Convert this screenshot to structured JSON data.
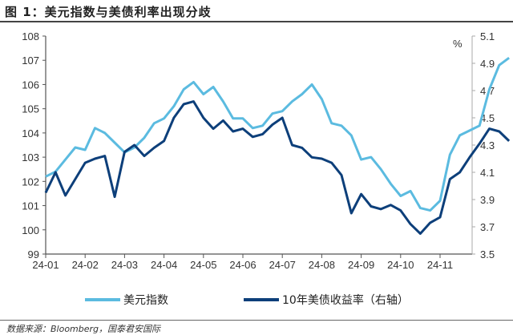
{
  "title": "图 1：美元指数与美债利率出现分歧",
  "source": "数据来源：Bloomberg，国泰君安国际",
  "colors": {
    "dxy": "#5bbbe0",
    "ust10y": "#0d3f7a",
    "axis": "#555555"
  },
  "legend": {
    "dxy": "美元指数",
    "ust10y": "10年美债收益率（右轴）"
  },
  "unit_right": "%",
  "chart_data": {
    "type": "line",
    "title": "美元指数与美债利率出现分歧",
    "xlabel": "",
    "ylabel": "美元指数",
    "ylabel_right": "%",
    "ylim": [
      99,
      108
    ],
    "ylim_right": [
      3.5,
      5.1
    ],
    "yticks": [
      99,
      100,
      101,
      102,
      103,
      104,
      105,
      106,
      107,
      108
    ],
    "yticks_right": [
      3.5,
      3.7,
      3.9,
      4.1,
      4.3,
      4.5,
      4.7,
      4.9,
      5.1
    ],
    "xticks": [
      "24-01",
      "24-02",
      "24-03",
      "24-04",
      "24-05",
      "24-06",
      "24-07",
      "24-08",
      "24-09",
      "24-10",
      "24-11"
    ],
    "grid": false,
    "legend_position": "bottom",
    "x": [
      0,
      0.25,
      0.5,
      0.75,
      1,
      1.25,
      1.5,
      1.75,
      2,
      2.25,
      2.5,
      2.75,
      3,
      3.25,
      3.5,
      3.75,
      4,
      4.25,
      4.5,
      4.75,
      5,
      5.25,
      5.5,
      5.75,
      6,
      6.25,
      6.5,
      6.75,
      7,
      7.25,
      7.5,
      7.75,
      8,
      8.25,
      8.5,
      8.75,
      9,
      9.25,
      9.5,
      9.75,
      10,
      10.25,
      10.5,
      10.75,
      11,
      11.25,
      11.5,
      11.75
    ],
    "series": [
      {
        "name": "美元指数",
        "axis": "left",
        "values": [
          102.2,
          102.4,
          102.9,
          103.4,
          103.3,
          104.2,
          104.0,
          103.6,
          103.2,
          103.4,
          103.8,
          104.4,
          104.6,
          105.1,
          105.8,
          106.1,
          105.6,
          105.9,
          105.3,
          104.6,
          104.6,
          104.2,
          104.3,
          104.8,
          104.9,
          105.3,
          105.6,
          106.0,
          105.4,
          104.4,
          104.3,
          103.9,
          102.9,
          103.0,
          102.5,
          101.9,
          101.4,
          101.6,
          100.9,
          100.8,
          101.2,
          103.1,
          103.9,
          104.1,
          104.3,
          105.8,
          106.8,
          107.1
        ]
      },
      {
        "name": "10年美债收益率（右轴）",
        "axis": "right",
        "values": [
          3.95,
          4.1,
          3.93,
          4.05,
          4.17,
          4.2,
          4.22,
          3.92,
          4.25,
          4.3,
          4.22,
          4.28,
          4.33,
          4.5,
          4.6,
          4.62,
          4.5,
          4.42,
          4.48,
          4.4,
          4.42,
          4.36,
          4.38,
          4.45,
          4.5,
          4.3,
          4.28,
          4.21,
          4.2,
          4.17,
          4.08,
          3.8,
          3.94,
          3.85,
          3.83,
          3.86,
          3.82,
          3.72,
          3.65,
          3.73,
          3.77,
          4.05,
          4.1,
          4.21,
          4.31,
          4.42,
          4.4,
          4.33
        ]
      }
    ]
  }
}
